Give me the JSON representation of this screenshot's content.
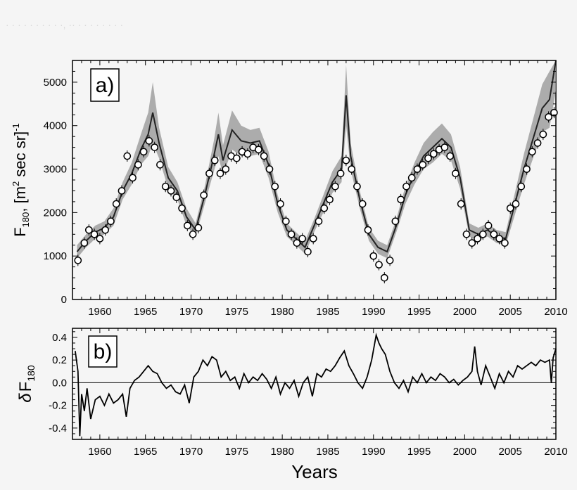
{
  "header": {
    "faint_text": "· · · ·  · · ·  · · ·, ·· · ·  ·  · · · · ·"
  },
  "chart_data": [
    {
      "type": "line",
      "panel_label": "a)",
      "ylabel_main": "F",
      "ylabel_sub": "180",
      "ylabel_unit_open": ", [m",
      "ylabel_unit_sup": "2",
      "ylabel_unit_mid": " sec sr]",
      "ylabel_unit_sup2": "-1",
      "xlim": [
        1957,
        2010
      ],
      "ylim": [
        0,
        5500
      ],
      "x_ticks": [
        1960,
        1965,
        1970,
        1975,
        1980,
        1985,
        1990,
        1995,
        2000,
        2005,
        2010
      ],
      "y_ticks": [
        0,
        1000,
        2000,
        3000,
        4000,
        5000
      ],
      "colors": {
        "model_line": "#222222",
        "model_band": "#9a9a9a",
        "observations": "#000000"
      },
      "series": [
        {
          "role": "model",
          "x": [
            1957.5,
            1958.5,
            1959.5,
            1960.5,
            1961.5,
            1962.5,
            1963.5,
            1964.5,
            1965.3,
            1965.8,
            1966.5,
            1967.5,
            1968.5,
            1969.5,
            1970.5,
            1971.5,
            1972.5,
            1973.0,
            1973.5,
            1974.5,
            1975.5,
            1976.5,
            1977.5,
            1978.5,
            1979.5,
            1980.5,
            1981.5,
            1982.5,
            1983.5,
            1984.5,
            1985.5,
            1986.5,
            1987.0,
            1987.5,
            1988.5,
            1989.5,
            1990.5,
            1991.5,
            1992.5,
            1993.5,
            1994.5,
            1995.5,
            1996.5,
            1997.5,
            1998.5,
            1999.5,
            2000.5,
            2001.5,
            2002.5,
            2003.5,
            2004.5,
            2005.5,
            2006.5,
            2007.5,
            2008.5,
            2009.3,
            2010.0
          ],
          "y": [
            1100,
            1350,
            1550,
            1650,
            1900,
            2500,
            2900,
            3450,
            3800,
            4300,
            3600,
            2800,
            2500,
            1900,
            1600,
            2400,
            3300,
            3800,
            3200,
            3900,
            3650,
            3600,
            3650,
            3100,
            2200,
            1600,
            1400,
            1200,
            1700,
            2200,
            2700,
            3000,
            4700,
            3300,
            2300,
            1500,
            1200,
            1100,
            1700,
            2400,
            2900,
            3300,
            3500,
            3700,
            3500,
            2800,
            1600,
            1500,
            1600,
            1450,
            1400,
            2200,
            3000,
            3700,
            4400,
            4600,
            5500
          ],
          "band_half_width": [
            150,
            150,
            150,
            150,
            200,
            200,
            250,
            350,
            500,
            700,
            350,
            250,
            200,
            200,
            150,
            200,
            350,
            500,
            350,
            450,
            350,
            300,
            300,
            300,
            200,
            150,
            150,
            150,
            150,
            200,
            250,
            300,
            700,
            300,
            200,
            150,
            150,
            150,
            150,
            200,
            250,
            300,
            350,
            350,
            300,
            250,
            150,
            150,
            150,
            150,
            150,
            250,
            350,
            450,
            550,
            650,
            700
          ]
        },
        {
          "role": "observations",
          "x": [
            1957.6,
            1958.3,
            1958.8,
            1959.4,
            1960.0,
            1960.6,
            1961.2,
            1961.8,
            1962.4,
            1963.0,
            1963.6,
            1964.2,
            1964.8,
            1965.4,
            1966.0,
            1966.6,
            1967.2,
            1967.8,
            1968.4,
            1969.0,
            1969.6,
            1970.2,
            1970.8,
            1971.4,
            1972.0,
            1972.6,
            1973.2,
            1973.8,
            1974.4,
            1975.0,
            1975.6,
            1976.2,
            1976.8,
            1977.4,
            1978.0,
            1978.6,
            1979.2,
            1979.8,
            1980.4,
            1981.0,
            1981.6,
            1982.2,
            1982.8,
            1983.4,
            1984.0,
            1984.6,
            1985.2,
            1985.8,
            1986.4,
            1987.0,
            1987.6,
            1988.2,
            1988.8,
            1989.4,
            1990.0,
            1990.6,
            1991.2,
            1991.8,
            1992.4,
            1993.0,
            1993.6,
            1994.2,
            1994.8,
            1995.4,
            1996.0,
            1996.6,
            1997.2,
            1997.8,
            1998.4,
            1999.0,
            1999.6,
            2000.2,
            2000.8,
            2001.4,
            2002.0,
            2002.6,
            2003.2,
            2003.8,
            2004.4,
            2005.0,
            2005.6,
            2006.2,
            2006.8,
            2007.4,
            2008.0,
            2008.6,
            2009.2,
            2009.8
          ],
          "y": [
            900,
            1300,
            1600,
            1500,
            1400,
            1600,
            1800,
            2200,
            2500,
            3300,
            2800,
            3100,
            3400,
            3650,
            3500,
            3100,
            2600,
            2500,
            2350,
            2100,
            1700,
            1500,
            1650,
            2400,
            2900,
            3200,
            2900,
            3000,
            3300,
            3250,
            3400,
            3350,
            3500,
            3450,
            3300,
            3000,
            2600,
            2200,
            1800,
            1500,
            1300,
            1400,
            1100,
            1400,
            1800,
            2100,
            2300,
            2600,
            2900,
            3200,
            3000,
            2600,
            2200,
            1600,
            1000,
            800,
            500,
            900,
            1800,
            2300,
            2600,
            2800,
            3000,
            3100,
            3250,
            3350,
            3450,
            3500,
            3300,
            2900,
            2200,
            1500,
            1300,
            1400,
            1500,
            1700,
            1500,
            1400,
            1300,
            2100,
            2200,
            2600,
            3000,
            3400,
            3600,
            3800,
            4200,
            4300
          ]
        }
      ]
    },
    {
      "type": "line",
      "panel_label": "b)",
      "ylabel_delta": "δ",
      "ylabel_main": "F",
      "ylabel_sub": "180",
      "xlabel": "Years",
      "xlim": [
        1957,
        2010
      ],
      "ylim": [
        -0.5,
        0.48
      ],
      "x_ticks": [
        1960,
        1965,
        1970,
        1975,
        1980,
        1985,
        1990,
        1995,
        2000,
        2005,
        2010
      ],
      "y_ticks": [
        -0.4,
        -0.2,
        0.0,
        0.2,
        0.4
      ],
      "y_tick_labels": [
        "-0.4",
        "-0.2",
        "0.0",
        "0.2",
        "0.4"
      ],
      "reference_line": 0.0,
      "series": [
        {
          "role": "residual",
          "x": [
            1957.3,
            1957.6,
            1957.8,
            1958.0,
            1958.3,
            1958.6,
            1959.0,
            1959.5,
            1960.0,
            1960.5,
            1961.0,
            1961.5,
            1962.0,
            1962.5,
            1962.9,
            1963.3,
            1963.8,
            1964.3,
            1964.8,
            1965.3,
            1965.8,
            1966.3,
            1966.8,
            1967.3,
            1967.8,
            1968.3,
            1968.8,
            1969.3,
            1969.8,
            1970.3,
            1970.8,
            1971.3,
            1971.8,
            1972.3,
            1972.8,
            1973.3,
            1973.8,
            1974.3,
            1974.8,
            1975.3,
            1975.8,
            1976.3,
            1976.8,
            1977.3,
            1977.8,
            1978.3,
            1978.8,
            1979.3,
            1979.8,
            1980.3,
            1980.8,
            1981.3,
            1981.8,
            1982.3,
            1982.8,
            1983.3,
            1983.8,
            1984.3,
            1984.8,
            1985.3,
            1985.8,
            1986.3,
            1986.8,
            1987.3,
            1987.8,
            1988.3,
            1988.8,
            1989.3,
            1989.8,
            1990.3,
            1990.6,
            1990.9,
            1991.3,
            1991.8,
            1992.3,
            1992.8,
            1993.3,
            1993.8,
            1994.3,
            1994.8,
            1995.3,
            1995.8,
            1996.3,
            1996.8,
            1997.3,
            1997.8,
            1998.3,
            1998.8,
            1999.3,
            1999.8,
            2000.3,
            2000.8,
            2001.1,
            2001.4,
            2001.8,
            2002.3,
            2002.8,
            2003.3,
            2003.8,
            2004.3,
            2004.8,
            2005.3,
            2005.8,
            2006.3,
            2006.8,
            2007.3,
            2007.8,
            2008.3,
            2008.8,
            2009.3,
            2009.5,
            2009.7,
            2010.0
          ],
          "y": [
            0.28,
            0.1,
            -0.47,
            -0.1,
            -0.25,
            -0.05,
            -0.32,
            -0.15,
            -0.12,
            -0.2,
            -0.1,
            -0.18,
            -0.15,
            -0.1,
            -0.3,
            -0.05,
            0.02,
            0.05,
            0.1,
            0.15,
            0.1,
            0.08,
            0.0,
            -0.05,
            -0.02,
            -0.08,
            -0.1,
            -0.02,
            -0.18,
            0.05,
            0.1,
            0.2,
            0.15,
            0.23,
            0.2,
            0.05,
            0.1,
            0.02,
            0.05,
            -0.05,
            0.08,
            0.0,
            0.05,
            0.02,
            0.08,
            0.03,
            -0.05,
            0.05,
            -0.1,
            0.0,
            -0.05,
            0.02,
            -0.12,
            0.0,
            0.05,
            -0.12,
            0.08,
            0.05,
            0.12,
            0.1,
            0.15,
            0.22,
            0.28,
            0.15,
            0.08,
            0.0,
            -0.05,
            0.05,
            0.2,
            0.42,
            0.35,
            0.3,
            0.25,
            0.1,
            0.0,
            -0.05,
            0.02,
            -0.08,
            0.05,
            0.0,
            0.08,
            0.0,
            0.05,
            0.02,
            0.08,
            0.05,
            0.0,
            0.03,
            -0.02,
            0.02,
            0.05,
            0.1,
            0.32,
            0.1,
            -0.02,
            0.15,
            0.05,
            -0.05,
            0.08,
            0.0,
            0.1,
            0.05,
            0.15,
            0.12,
            0.15,
            0.18,
            0.15,
            0.2,
            0.18,
            0.2,
            0.0,
            0.22,
            0.3
          ]
        }
      ]
    }
  ]
}
